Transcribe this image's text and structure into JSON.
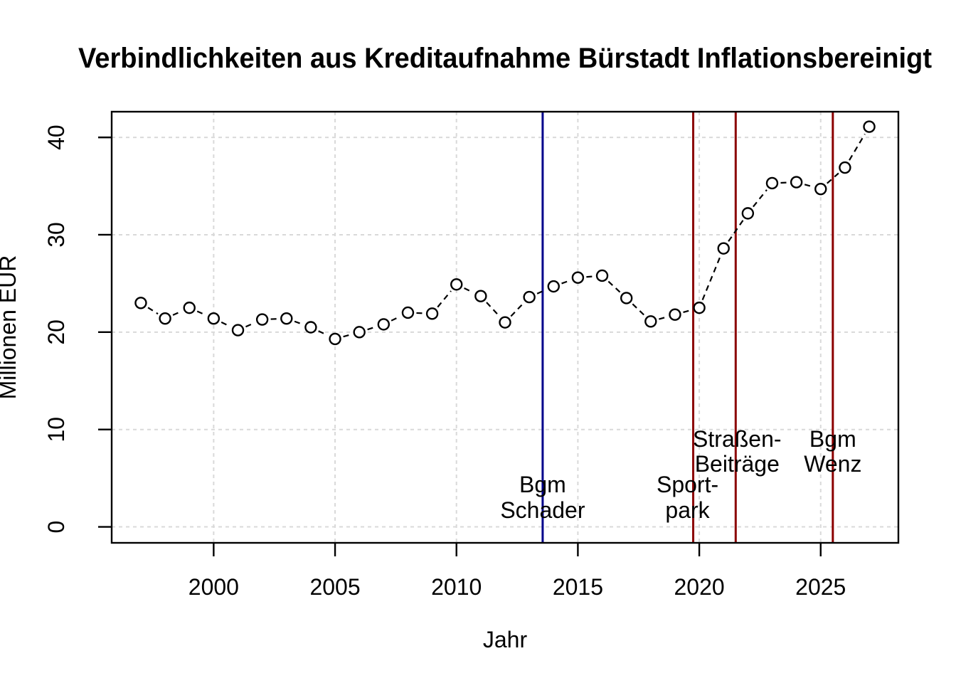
{
  "chart_data": {
    "type": "line",
    "title": "Verbindlichkeiten aus Kreditaufnahme Bürstadt Inflationsbereinigt",
    "xlabel": "Jahr",
    "ylabel": "Millionen EUR",
    "xlim": [
      1995.8,
      2028.2
    ],
    "ylim": [
      -1.64,
      42.64
    ],
    "xticks": [
      2000,
      2005,
      2010,
      2015,
      2020,
      2025
    ],
    "yticks": [
      0,
      10,
      20,
      30,
      40
    ],
    "grid": true,
    "legend": "none",
    "marker": "open-circle",
    "connector": "dashed",
    "series": [
      {
        "name": "Verbindlichkeiten aus Kreditaufnahme (inflationsbereinigt)",
        "x": [
          1997,
          1998,
          1999,
          2000,
          2001,
          2002,
          2003,
          2004,
          2005,
          2006,
          2007,
          2008,
          2009,
          2010,
          2011,
          2012,
          2013,
          2014,
          2015,
          2016,
          2017,
          2018,
          2019,
          2020,
          2021,
          2022,
          2023,
          2024,
          2025,
          2026,
          2027
        ],
        "y": [
          23.0,
          21.4,
          22.5,
          21.4,
          20.2,
          21.3,
          21.4,
          20.5,
          19.3,
          20.0,
          20.8,
          22.0,
          21.9,
          24.9,
          23.7,
          21.0,
          23.6,
          24.7,
          25.6,
          25.8,
          23.5,
          21.1,
          21.8,
          22.5,
          28.6,
          32.2,
          35.3,
          35.4,
          34.7,
          36.9,
          41.1
        ],
        "color": "#000000"
      }
    ],
    "event_lines": [
      {
        "id": "bgm-schader",
        "year": 2013.55,
        "color": "#00008B",
        "label_lines": [
          "Bgm",
          "Schader"
        ],
        "label_baseline_values": [
          3.55,
          0.92
        ],
        "label_dx": 0
      },
      {
        "id": "sportpark",
        "year": 2019.75,
        "color": "#8B0000",
        "label_lines": [
          "Sport-",
          "park"
        ],
        "label_baseline_values": [
          3.55,
          0.92
        ],
        "label_dx": -8
      },
      {
        "id": "strassen-beitraege",
        "year": 2021.5,
        "color": "#8B0000",
        "label_lines": [
          "Straßen-",
          "Beiträge"
        ],
        "label_baseline_values": [
          8.23,
          5.67
        ],
        "label_dx": 2
      },
      {
        "id": "bgm-wenz",
        "year": 2025.5,
        "color": "#8B0000",
        "label_lines": [
          "Bgm",
          "Wenz"
        ],
        "label_baseline_values": [
          8.23,
          5.67
        ],
        "label_dx": 0
      }
    ],
    "colors": {
      "background": "#ffffff",
      "frame": "#000000",
      "grid": "#D9D9D9",
      "points": "#000000",
      "blue_event": "#00008B",
      "red_event": "#8B0000"
    }
  }
}
